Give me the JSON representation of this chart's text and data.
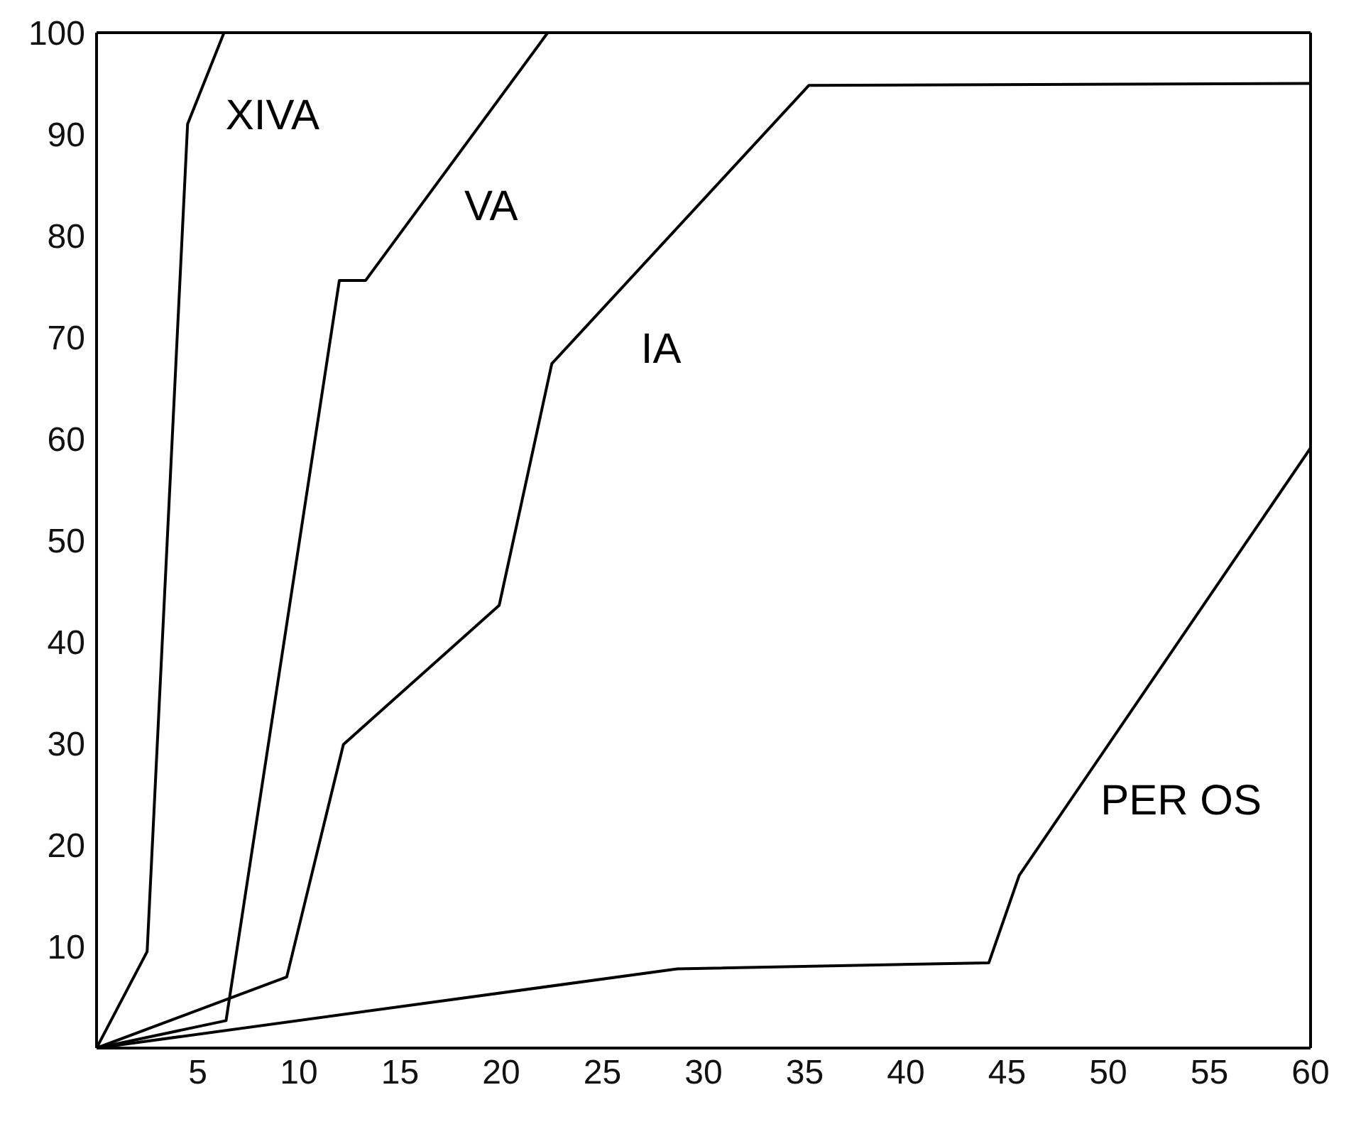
{
  "chart_data": {
    "type": "line",
    "xlim": [
      0,
      60
    ],
    "ylim": [
      0,
      100
    ],
    "xticks": [
      5,
      10,
      15,
      20,
      25,
      30,
      35,
      40,
      45,
      50,
      55,
      60
    ],
    "yticks": [
      10,
      20,
      30,
      40,
      50,
      60,
      70,
      80,
      90,
      100
    ],
    "grid": false,
    "legend": false,
    "marker": "none",
    "line_style": "solid",
    "series": [
      {
        "name": "XIVA",
        "color": "#000000",
        "x": [
          0,
          2.5,
          4.5,
          6.3
        ],
        "values": [
          0,
          9.5,
          91,
          100
        ]
      },
      {
        "name": "VA",
        "color": "#000000",
        "x": [
          0,
          6.4,
          12,
          13.3,
          22.3
        ],
        "values": [
          0,
          2.7,
          75.6,
          75.6,
          100
        ]
      },
      {
        "name": "IA",
        "color": "#000000",
        "x": [
          0,
          9.4,
          12.2,
          19.9,
          22.5,
          35.2,
          60
        ],
        "values": [
          0,
          7,
          29.9,
          43.6,
          67.4,
          94.8,
          95
        ]
      },
      {
        "name": "PER OS",
        "color": "#000000",
        "x": [
          0,
          28.7,
          44.1,
          45.6,
          60
        ],
        "values": [
          0,
          7.8,
          8.4,
          17,
          59.1
        ]
      }
    ]
  }
}
